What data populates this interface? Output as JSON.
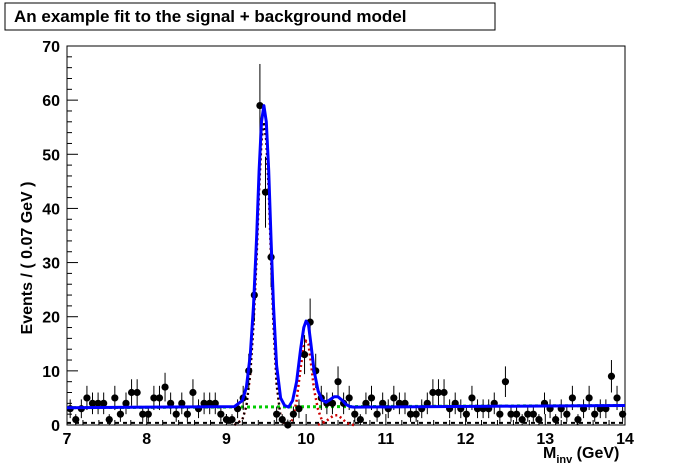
{
  "chart_data": {
    "type": "scatter",
    "title": "An example fit to the signal + background model",
    "ylabel": "Events / ( 0.07 GeV )",
    "xlabel_main": "M",
    "xlabel_sub": "inv",
    "xlabel_unit": " (GeV)",
    "xlim": [
      7,
      14
    ],
    "ylim": [
      0,
      70
    ],
    "x_ticks": [
      "7",
      "8",
      "9",
      "10",
      "11",
      "12",
      "13",
      "14"
    ],
    "y_ticks": [
      "0",
      "10",
      "20",
      "30",
      "40",
      "50",
      "60",
      "70"
    ],
    "grid": false,
    "legend": "none",
    "colors": {
      "data": "#000000",
      "total_fit": "#0000ff",
      "background": "#00cc00",
      "signal_components": "#cc0000"
    },
    "series": [
      {
        "style": "points-with-errors",
        "x": [
          7.04,
          7.11,
          7.18,
          7.25,
          7.32,
          7.39,
          7.46,
          7.53,
          7.6,
          7.67,
          7.74,
          7.81,
          7.88,
          7.95,
          8.02,
          8.09,
          8.16,
          8.23,
          8.3,
          8.37,
          8.44,
          8.51,
          8.58,
          8.65,
          8.72,
          8.79,
          8.86,
          8.93,
          9.0,
          9.07,
          9.14,
          9.21,
          9.28,
          9.35,
          9.42,
          9.49,
          9.56,
          9.63,
          9.7,
          9.77,
          9.84,
          9.91,
          9.98,
          10.05,
          10.12,
          10.19,
          10.26,
          10.33,
          10.4,
          10.47,
          10.54,
          10.61,
          10.68,
          10.75,
          10.82,
          10.89,
          10.96,
          11.03,
          11.1,
          11.17,
          11.24,
          11.31,
          11.38,
          11.45,
          11.52,
          11.59,
          11.66,
          11.73,
          11.8,
          11.87,
          11.94,
          12.01,
          12.08,
          12.15,
          12.22,
          12.29,
          12.36,
          12.43,
          12.5,
          12.57,
          12.64,
          12.71,
          12.78,
          12.85,
          12.92,
          12.99,
          13.06,
          13.13,
          13.2,
          13.27,
          13.34,
          13.41,
          13.48,
          13.55,
          13.62,
          13.69,
          13.76,
          13.83,
          13.9,
          13.97
        ],
        "y": [
          3,
          1,
          3,
          5,
          4,
          4,
          4,
          1,
          5,
          2,
          4,
          6,
          6,
          2,
          2,
          5,
          5,
          7,
          4,
          2,
          4,
          2,
          6,
          3,
          4,
          4,
          4,
          2,
          1,
          1,
          3,
          5,
          10,
          24,
          59,
          43,
          31,
          2,
          1,
          0,
          2,
          3,
          13,
          19,
          10,
          5,
          4,
          4,
          8,
          4,
          5,
          2,
          1,
          4,
          5,
          2,
          4,
          3,
          5,
          4,
          4,
          2,
          2,
          3,
          4,
          6,
          6,
          6,
          3,
          4,
          3,
          2,
          5,
          3,
          3,
          3,
          4,
          2,
          8,
          2,
          2,
          1,
          2,
          2,
          1,
          4,
          3,
          1,
          3,
          2,
          5,
          1,
          3,
          5,
          2,
          3,
          3,
          9,
          5,
          2
        ]
      },
      {
        "name": "total",
        "style": "line",
        "x": [
          9.1,
          9.2,
          9.25,
          9.3,
          9.34,
          9.38,
          9.41,
          9.44,
          9.47,
          9.5,
          9.53,
          9.56,
          9.59,
          9.63,
          9.68,
          9.73,
          9.78,
          9.83,
          9.88,
          9.93,
          9.97,
          10.0,
          10.03,
          10.06,
          10.1,
          10.15,
          10.2,
          10.25,
          10.3,
          10.35,
          10.4,
          10.45,
          10.5,
          10.55,
          10.6
        ],
        "y": [
          3.4,
          4.5,
          7,
          13,
          22,
          35,
          47,
          56,
          59,
          56,
          47,
          34,
          22,
          11,
          5,
          3.6,
          3.3,
          4.5,
          8,
          14,
          18,
          19.2,
          18.5,
          15,
          10,
          6.3,
          4.6,
          4.2,
          4.7,
          5.2,
          5.2,
          4.6,
          3.8,
          3.4,
          3.3
        ]
      },
      {
        "name": "background",
        "style": "dashed-line",
        "x": [
          7,
          14
        ],
        "y": [
          3.2,
          3.6
        ]
      },
      {
        "name": "signal-1",
        "style": "dotted-line",
        "x": [
          9.1,
          9.2,
          9.25,
          9.3,
          9.34,
          9.38,
          9.41,
          9.44,
          9.47,
          9.5,
          9.53,
          9.56,
          9.59,
          9.63,
          9.68,
          9.73,
          9.8
        ],
        "y": [
          0,
          1,
          3.5,
          9.5,
          18.5,
          31.5,
          43.5,
          52.5,
          56,
          52.5,
          43.5,
          30.5,
          18.5,
          7.5,
          1.5,
          0.2,
          0
        ]
      },
      {
        "name": "signal-2",
        "style": "dotted-line",
        "x": [
          9.78,
          9.83,
          9.88,
          9.93,
          9.97,
          10.0,
          10.03,
          10.06,
          10.1,
          10.15,
          10.2,
          10.25
        ],
        "y": [
          0,
          1,
          4.5,
          10.5,
          14.5,
          15.5,
          15,
          11.5,
          6.5,
          2.8,
          0.8,
          0
        ]
      },
      {
        "name": "signal-3",
        "style": "dotted-line",
        "x": [
          10.15,
          10.2,
          10.25,
          10.3,
          10.35,
          10.4,
          10.45,
          10.5,
          10.55,
          10.6
        ],
        "y": [
          0,
          0.4,
          0.7,
          1.3,
          1.8,
          1.8,
          1.2,
          0.5,
          0.1,
          0
        ]
      }
    ]
  }
}
